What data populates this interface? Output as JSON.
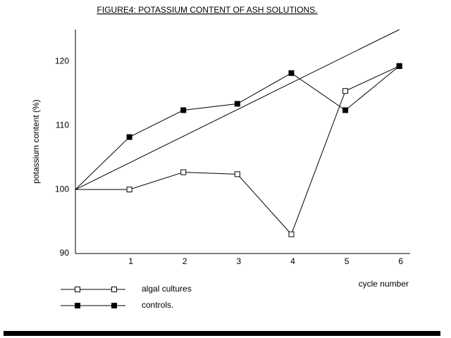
{
  "chart_data": {
    "type": "line",
    "title": "FIGURE4: POTASSIUM CONTENT OF ASH SOLUTIONS.",
    "x_label": "cycle number",
    "y_label": "potassium content (%)",
    "x": [
      0,
      1,
      2,
      3,
      4,
      5,
      6
    ],
    "series": [
      {
        "name": "algal cultures",
        "color": "#000000",
        "marker": "open-square",
        "values": [
          100,
          100,
          102.7,
          102.4,
          93,
          115.4,
          119.3
        ]
      },
      {
        "name": "controls.",
        "color": "#000000",
        "marker": "filled-square",
        "values": [
          100,
          108.2,
          112.4,
          113.4,
          118.2,
          112.4,
          119.3
        ]
      }
    ],
    "trend_line": {
      "x": [
        0,
        6
      ],
      "values": [
        100,
        125
      ],
      "color": "#000000"
    },
    "xlim": [
      0,
      6.2
    ],
    "xticks": [
      1,
      2,
      3,
      4,
      5,
      6
    ],
    "ylim": [
      90,
      125
    ],
    "yticks": [
      90,
      100,
      110,
      120
    ],
    "grid": false
  }
}
